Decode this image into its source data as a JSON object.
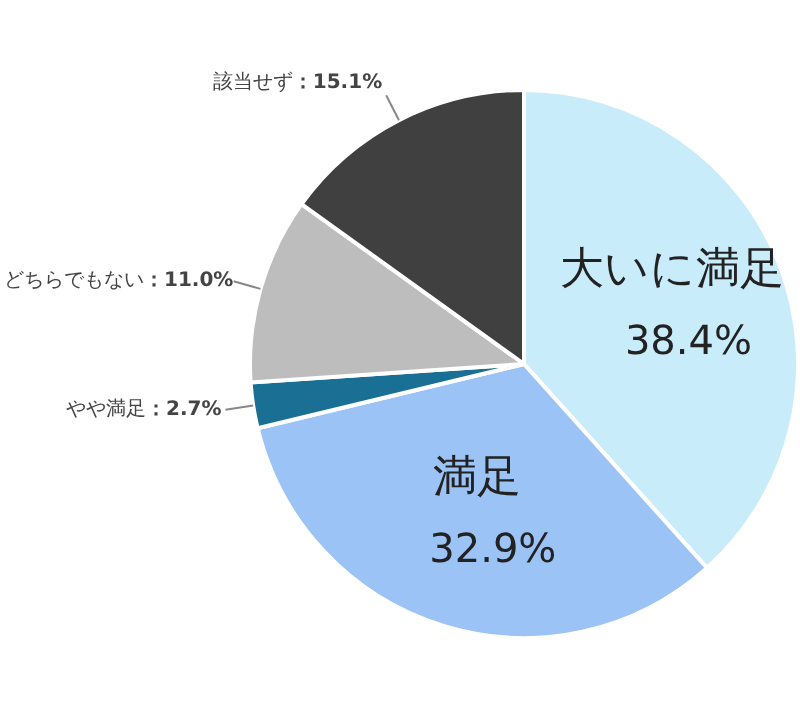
{
  "chart_data": {
    "type": "pie",
    "categories": [
      "大いに満足",
      "満足",
      "やや満足",
      "どちらでもない",
      "該当せず"
    ],
    "values": [
      38.4,
      32.9,
      2.7,
      11.0,
      15.1
    ],
    "colors": [
      "#c9ecfa",
      "#9cc3f5",
      "#1a6f94",
      "#bdbdbd",
      "#404040"
    ],
    "value_labels": [
      "38.4%",
      "32.9%",
      "：2.7%",
      "：11.0%",
      "：15.1%"
    ]
  }
}
